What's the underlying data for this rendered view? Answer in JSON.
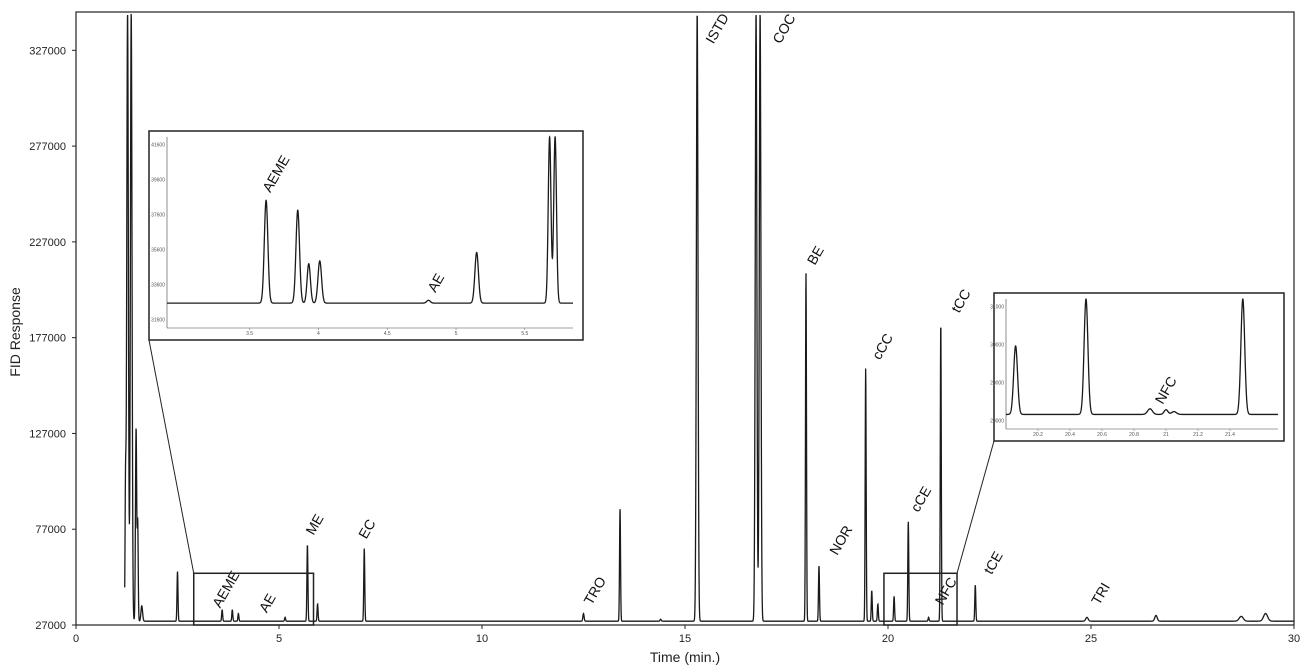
{
  "chart_data": {
    "type": "line",
    "xlabel": "Time (min.)",
    "ylabel": "FID Response",
    "xlim": [
      0,
      30
    ],
    "ylim": [
      27000,
      347000
    ],
    "x_ticks": [
      "0",
      "5",
      "10",
      "15",
      "20",
      "25",
      "30"
    ],
    "y_ticks": [
      "27000",
      "77000",
      "127000",
      "177000",
      "227000",
      "277000",
      "327000"
    ],
    "baseline": 29000,
    "peaks": [
      {
        "label": "",
        "x": 1.22,
        "y": 97000,
        "w": 0.012
      },
      {
        "label": "",
        "x": 1.27,
        "y": 347000,
        "w": 0.02
      },
      {
        "label": "",
        "x": 1.36,
        "y": 347000,
        "w": 0.02
      },
      {
        "label": "",
        "x": 1.48,
        "y": 130000,
        "w": 0.015
      },
      {
        "label": "",
        "x": 1.52,
        "y": 80000,
        "w": 0.012
      },
      {
        "label": "",
        "x": 1.62,
        "y": 37000,
        "w": 0.02
      },
      {
        "label": "",
        "x": 2.5,
        "y": 55000,
        "w": 0.012
      },
      {
        "label": "AEME",
        "x": 3.6,
        "y": 35000,
        "w": 0.012
      },
      {
        "label": "",
        "x": 3.85,
        "y": 35000,
        "w": 0.012
      },
      {
        "label": "",
        "x": 4.0,
        "y": 33000,
        "w": 0.012
      },
      {
        "label": "AE",
        "x": 5.15,
        "y": 31000,
        "w": 0.012
      },
      {
        "label": "ME",
        "x": 5.7,
        "y": 69000,
        "w": 0.012
      },
      {
        "label": "",
        "x": 5.95,
        "y": 38000,
        "w": 0.012
      },
      {
        "label": "EC",
        "x": 7.1,
        "y": 67000,
        "w": 0.012
      },
      {
        "label": "TRO",
        "x": 12.5,
        "y": 33000,
        "w": 0.015
      },
      {
        "label": "",
        "x": 13.4,
        "y": 88000,
        "w": 0.012
      },
      {
        "label": "",
        "x": 14.4,
        "y": 30000,
        "w": 0.015
      },
      {
        "label": "ISTD",
        "x": 15.3,
        "y": 347000,
        "w": 0.02
      },
      {
        "label": "COC",
        "x": 16.75,
        "y": 347000,
        "w": 0.02
      },
      {
        "label": "",
        "x": 16.85,
        "y": 347000,
        "w": 0.02
      },
      {
        "label": "BE",
        "x": 17.98,
        "y": 211000,
        "w": 0.012
      },
      {
        "label": "NOR",
        "x": 18.3,
        "y": 58000,
        "w": 0.012
      },
      {
        "label": "cCC",
        "x": 19.45,
        "y": 161000,
        "w": 0.012
      },
      {
        "label": "",
        "x": 19.6,
        "y": 45000,
        "w": 0.012
      },
      {
        "label": "",
        "x": 19.75,
        "y": 38000,
        "w": 0.012
      },
      {
        "label": "cCE",
        "x": 20.5,
        "y": 81000,
        "w": 0.012
      },
      {
        "label": "",
        "x": 20.15,
        "y": 42000,
        "w": 0.012
      },
      {
        "label": "NFC",
        "x": 21.0,
        "y": 31000,
        "w": 0.012
      },
      {
        "label": "tCC",
        "x": 21.3,
        "y": 185000,
        "w": 0.012
      },
      {
        "label": "tCE",
        "x": 22.15,
        "y": 48000,
        "w": 0.012
      },
      {
        "label": "TRI",
        "x": 24.9,
        "y": 31000,
        "w": 0.03
      },
      {
        "label": "",
        "x": 26.6,
        "y": 32000,
        "w": 0.03
      },
      {
        "label": "",
        "x": 28.7,
        "y": 31500,
        "w": 0.05
      },
      {
        "label": "",
        "x": 29.3,
        "y": 33000,
        "w": 0.05
      }
    ],
    "annotations": [
      {
        "text": "AEME",
        "x": 3.55,
        "y": 35500
      },
      {
        "text": "AE",
        "x": 4.7,
        "y": 33000
      },
      {
        "text": "ME",
        "x": 5.85,
        "y": 73500
      },
      {
        "text": "EC",
        "x": 7.15,
        "y": 71500
      },
      {
        "text": "TRO",
        "x": 12.7,
        "y": 37000
      },
      {
        "text": "ISTD",
        "x": 15.7,
        "y": 330000
      },
      {
        "text": "COC",
        "x": 17.35,
        "y": 330000
      },
      {
        "text": "BE",
        "x": 18.2,
        "y": 214500
      },
      {
        "text": "NOR",
        "x": 18.75,
        "y": 63000
      },
      {
        "text": "cCC",
        "x": 19.8,
        "y": 165000
      },
      {
        "text": "cCE",
        "x": 20.75,
        "y": 85500
      },
      {
        "text": "NFC",
        "x": 21.35,
        "y": 37000
      },
      {
        "text": "tCC",
        "x": 21.75,
        "y": 189500
      },
      {
        "text": "tCE",
        "x": 22.55,
        "y": 53000
      },
      {
        "text": "TRI",
        "x": 25.2,
        "y": 37000
      }
    ],
    "zoom_regions": [
      {
        "name": "left",
        "xlim": [
          2.9,
          5.85
        ],
        "ylim": [
          27000,
          54000
        ]
      },
      {
        "name": "right",
        "xlim": [
          19.9,
          21.7
        ],
        "ylim": [
          27000,
          54000
        ]
      }
    ],
    "inset_left": {
      "xlim": [
        2.9,
        5.85
      ],
      "ylim": [
        27000,
        40000
      ],
      "peaks": [
        {
          "x": 3.62,
          "y": 35500,
          "w": 0.013
        },
        {
          "x": 3.85,
          "y": 34800,
          "w": 0.013
        },
        {
          "x": 3.93,
          "y": 31000,
          "w": 0.012
        },
        {
          "x": 4.01,
          "y": 31200,
          "w": 0.013
        },
        {
          "x": 4.8,
          "y": 28400,
          "w": 0.013
        },
        {
          "x": 5.15,
          "y": 31800,
          "w": 0.013
        },
        {
          "x": 5.68,
          "y": 40000,
          "w": 0.01
        },
        {
          "x": 5.72,
          "y": 40000,
          "w": 0.01
        }
      ],
      "labels": [
        {
          "text": "AEME",
          "x": 3.65,
          "y": 36000
        },
        {
          "text": "AE",
          "x": 4.85,
          "y": 28900
        }
      ],
      "x_ticks": [
        "3.5",
        "4",
        "4.5",
        "5",
        "5.5"
      ],
      "y_ticks": [
        "41600",
        "39600",
        "37600",
        "35600",
        "33600",
        "31600"
      ]
    },
    "inset_right": {
      "xlim": [
        20.0,
        21.7
      ],
      "ylim": [
        27000,
        40000
      ],
      "peaks": [
        {
          "x": 20.06,
          "y": 35000,
          "w": 0.012
        },
        {
          "x": 20.5,
          "y": 40000,
          "w": 0.012
        },
        {
          "x": 20.9,
          "y": 28300,
          "w": 0.015
        },
        {
          "x": 21.0,
          "y": 28200,
          "w": 0.012
        },
        {
          "x": 21.05,
          "y": 28000,
          "w": 0.015
        },
        {
          "x": 21.48,
          "y": 40000,
          "w": 0.012
        }
      ],
      "labels": [
        {
          "text": "NFC",
          "x": 20.98,
          "y": 28700
        }
      ],
      "x_ticks": [
        "20.2",
        "20.4",
        "20.6",
        "20.8",
        "21",
        "21.2",
        "21.4"
      ],
      "y_ticks": [
        "31000",
        "30000",
        "29000",
        "28000"
      ]
    }
  }
}
